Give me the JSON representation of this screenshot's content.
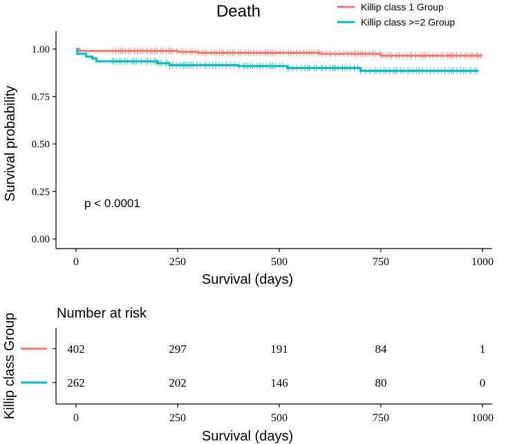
{
  "chart_data": [
    {
      "type": "line",
      "subtype": "kaplan-meier",
      "title": "Death",
      "xlabel": "Survival (days)",
      "ylabel": "Survival probability",
      "xlim": [
        0,
        1000
      ],
      "ylim": [
        0,
        1
      ],
      "xticks": [
        "0",
        "250",
        "500",
        "750",
        "1000"
      ],
      "yticks": [
        "0.00",
        "0.25",
        "0.50",
        "0.75",
        "1.00"
      ],
      "annotation": "p < 0.0001",
      "legend_position": "top-right",
      "series": [
        {
          "name": "Killip class 1 Group",
          "color": "#F8766D",
          "steps": [
            [
              0,
              1.0
            ],
            [
              8,
              0.99
            ],
            [
              250,
              0.985
            ],
            [
              300,
              0.98
            ],
            [
              600,
              0.975
            ],
            [
              750,
              0.965
            ],
            [
              1000,
              0.965
            ]
          ],
          "censor_range": [
            90,
            1000
          ]
        },
        {
          "name": "Killip class >=2 Group",
          "color": "#00BFC4",
          "steps": [
            [
              0,
              1.0
            ],
            [
              3,
              0.975
            ],
            [
              25,
              0.96
            ],
            [
              40,
              0.95
            ],
            [
              50,
              0.935
            ],
            [
              200,
              0.925
            ],
            [
              230,
              0.915
            ],
            [
              400,
              0.91
            ],
            [
              520,
              0.9
            ],
            [
              700,
              0.885
            ],
            [
              990,
              0.885
            ]
          ],
          "censor_range": [
            90,
            990
          ]
        }
      ]
    },
    {
      "type": "table",
      "title": "Number at risk",
      "ylabel": "Killip class Group",
      "xlabel": "Survival (days)",
      "x": [
        0,
        250,
        500,
        750,
        1000
      ],
      "xticks": [
        "0",
        "250",
        "500",
        "750",
        "1000"
      ],
      "rows": [
        {
          "group": "Killip class 1 Group",
          "color": "#F8766D",
          "values": [
            "402",
            "297",
            "191",
            "84",
            "1"
          ]
        },
        {
          "group": "Killip class >=2 Group",
          "color": "#00BFC4",
          "values": [
            "262",
            "202",
            "146",
            "80",
            "0"
          ]
        }
      ]
    }
  ]
}
